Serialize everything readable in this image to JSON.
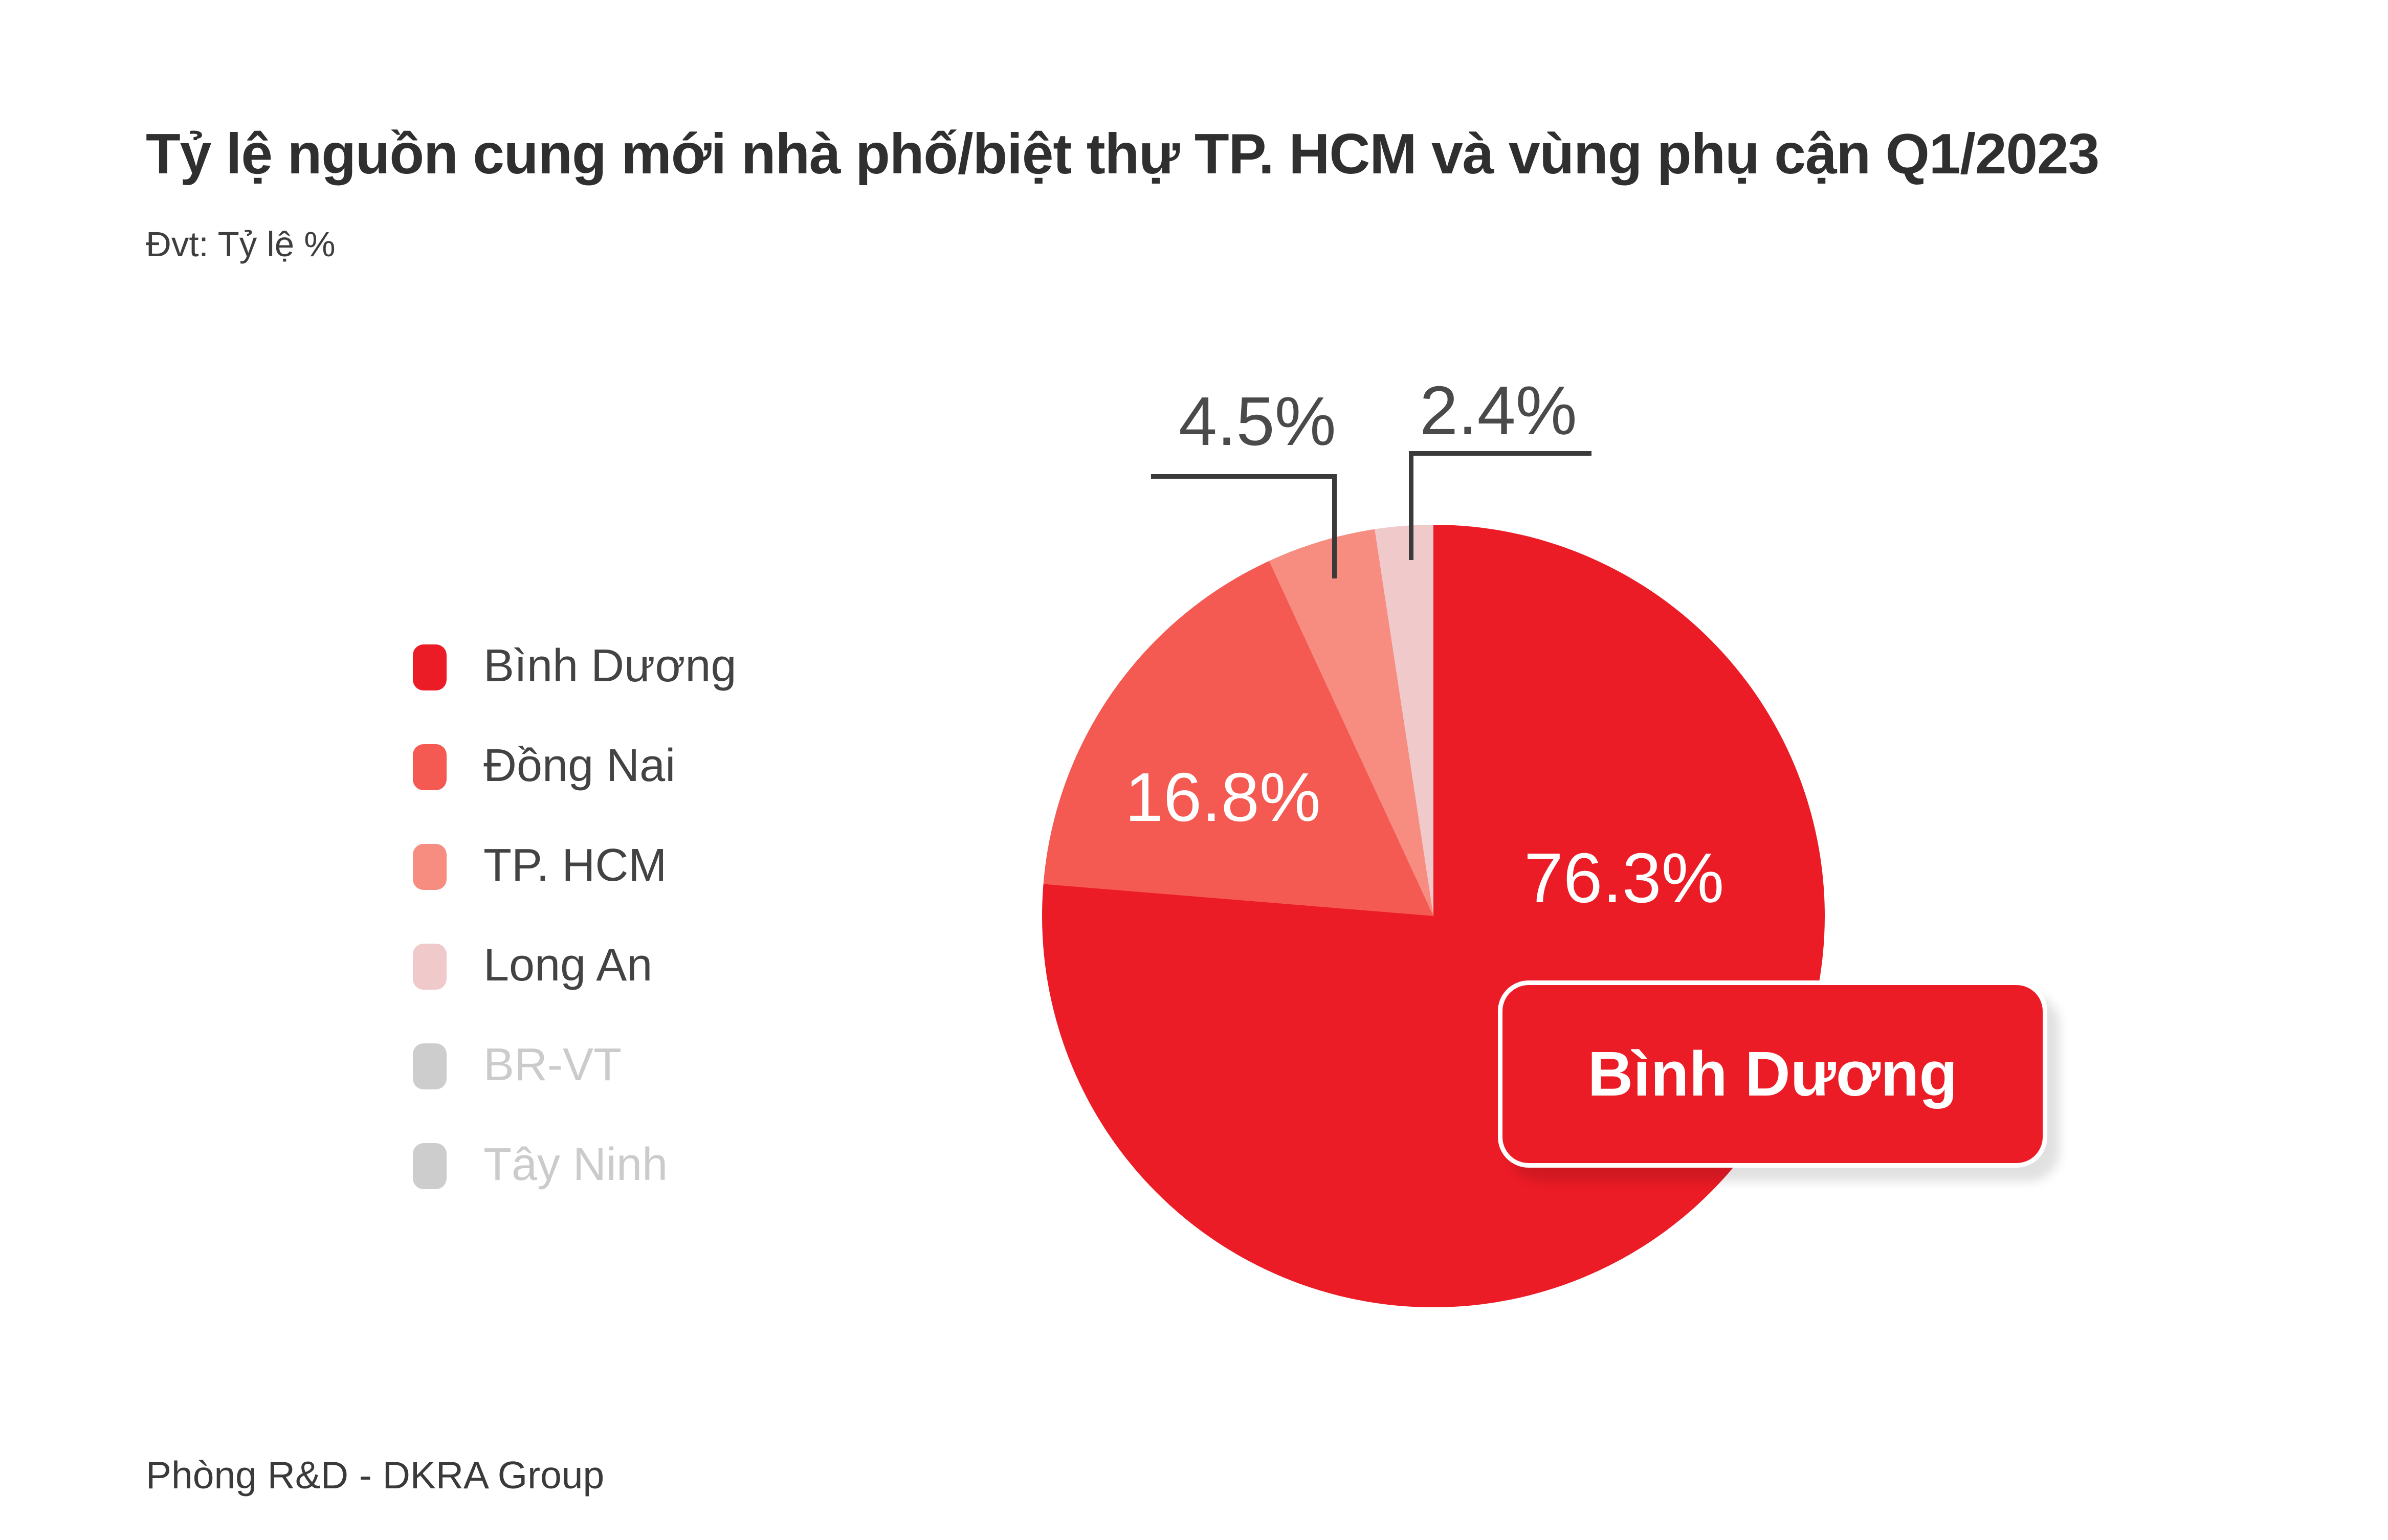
{
  "header": {
    "title": "Tỷ lệ nguồn cung mới nhà phố/biệt thự TP. HCM và vùng phụ cận Q1/2023",
    "unit_note": "Đvt: Tỷ lệ %"
  },
  "footer": {
    "source": "Phòng R&D - DKRA Group"
  },
  "badge": {
    "label": "Bình Dương",
    "color": "#EC1C26"
  },
  "legend": {
    "items": [
      {
        "label": "Bình Dương",
        "color": "#EC1C26",
        "muted": false
      },
      {
        "label": "Đồng Nai",
        "color": "#F45952",
        "muted": false
      },
      {
        "label": "TP. HCM",
        "color": "#F68D80",
        "muted": false
      },
      {
        "label": "Long An",
        "color": "#F0C9CB",
        "muted": false
      },
      {
        "label": "BR-VT",
        "color": "#CDCDCD",
        "muted": true
      },
      {
        "label": "Tây Ninh",
        "color": "#CDCDCD",
        "muted": true
      }
    ]
  },
  "chart_data": {
    "type": "pie",
    "title": "Tỷ lệ nguồn cung mới nhà phố/biệt thự TP. HCM và vùng phụ cận Q1/2023",
    "unit": "Tỷ lệ %",
    "categories": [
      "Bình Dương",
      "Đồng Nai",
      "TP. HCM",
      "Long An",
      "BR-VT",
      "Tây Ninh"
    ],
    "values": [
      76.3,
      16.8,
      4.5,
      2.4,
      0,
      0
    ],
    "colors": [
      "#EC1C26",
      "#F45952",
      "#F68D80",
      "#F0C9CB",
      "#CDCDCD",
      "#CDCDCD"
    ],
    "slice_labels": [
      "76.3%",
      "16.8%",
      "4.5%",
      "2.4%"
    ],
    "start_angle_deg": 0,
    "direction": "clockwise",
    "legend_position": "left",
    "highlighted_category": "Bình Dương",
    "source": "Phòng R&D - DKRA Group"
  }
}
